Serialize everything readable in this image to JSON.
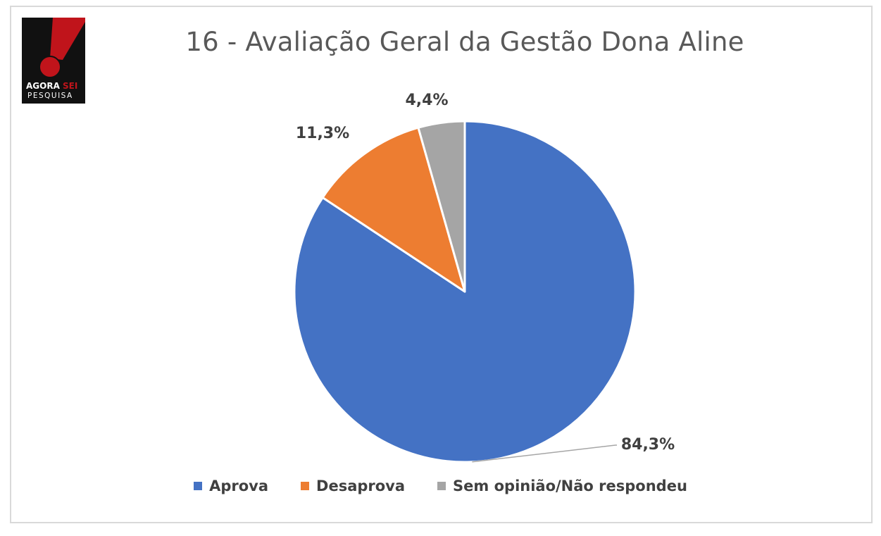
{
  "logo": {
    "line1_a": "AGORA",
    "line1_b": "SEI",
    "line2": "PESQUISA",
    "colors": {
      "red": "#c0141b",
      "black": "#111111"
    }
  },
  "chart_data": {
    "type": "pie",
    "title": "16 - Avaliação Geral da Gestão Dona Aline",
    "start_angle_deg": 0,
    "direction": "clockwise",
    "slices": [
      {
        "name": "Aprova",
        "value": 84.3,
        "label": "84,3%",
        "color": "#4472c4"
      },
      {
        "name": "Desaprova",
        "value": 11.3,
        "label": "11,3%",
        "color": "#ed7d31"
      },
      {
        "name": "Sem opinião/Não respondeu",
        "value": 4.4,
        "label": "4,4%",
        "color": "#a5a5a5"
      }
    ],
    "legend": {
      "placement": "bottom"
    }
  }
}
